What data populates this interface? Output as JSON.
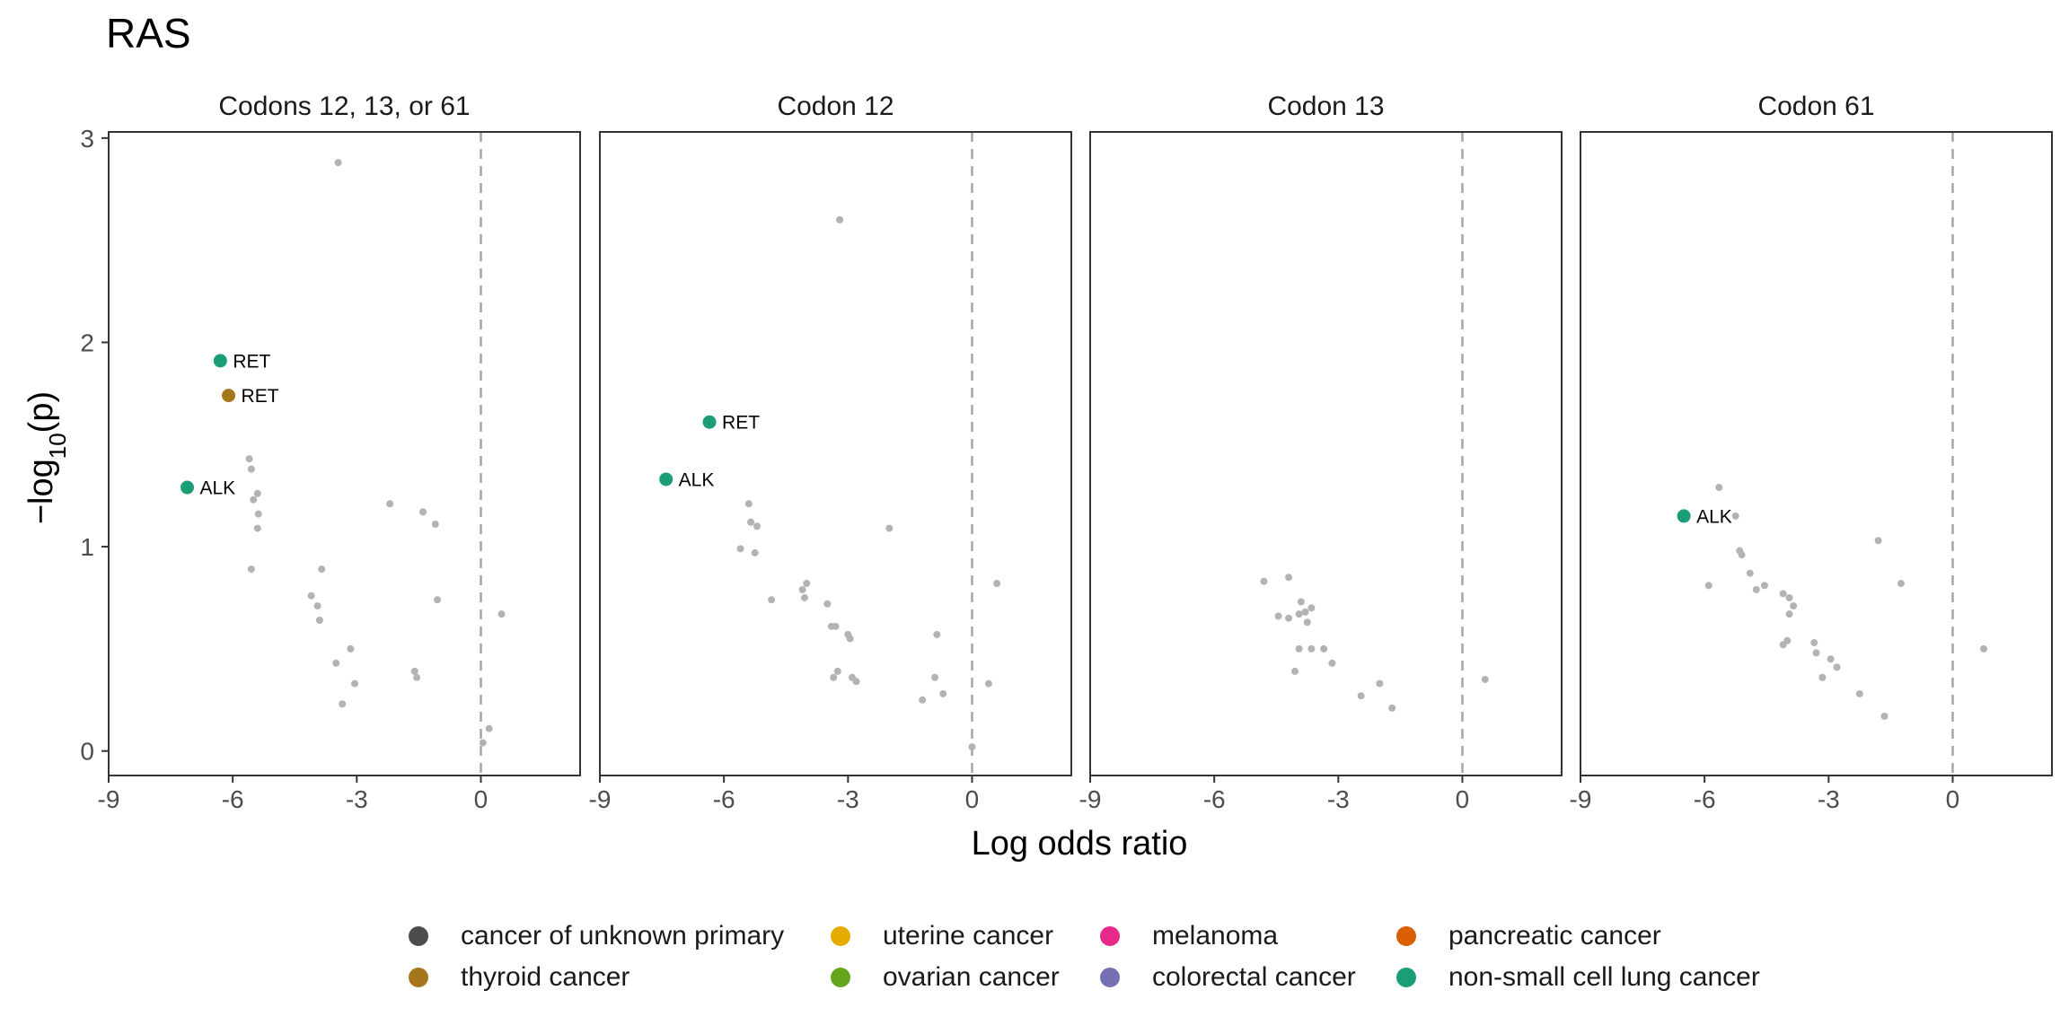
{
  "title": "RAS",
  "colors": {
    "background_point": "#b3b3b3",
    "panel_border": "#333333",
    "reference_line": "#a6a6a6"
  },
  "legend": {
    "items": [
      {
        "label": "cancer of unknown primary",
        "color": "#4d4d4d"
      },
      {
        "label": "uterine cancer",
        "color": "#e6ab02"
      },
      {
        "label": "melanoma",
        "color": "#e7298a"
      },
      {
        "label": "pancreatic cancer",
        "color": "#d95f02"
      },
      {
        "label": "thyroid cancer",
        "color": "#a6761d"
      },
      {
        "label": "ovarian cancer",
        "color": "#66a61e"
      },
      {
        "label": "colorectal cancer",
        "color": "#7570b3"
      },
      {
        "label": "non-small cell lung cancer",
        "color": "#1b9e77"
      }
    ]
  },
  "chart_data": {
    "type": "scatter",
    "xlabel": "Log odds ratio",
    "ylabel_parts": {
      "prefix": "−log",
      "subscript": "10",
      "suffix": "(p)"
    },
    "xlim": [
      -9,
      2.4
    ],
    "ylim": [
      -0.12,
      3.03
    ],
    "x_ticks": [
      -9,
      -6,
      -3,
      0
    ],
    "x_tick_labels": [
      "-9",
      "-6",
      "-3",
      "0"
    ],
    "y_ticks": [
      0,
      1,
      2,
      3
    ],
    "y_tick_labels": [
      "0",
      "1",
      "2",
      "3"
    ],
    "reference_line_x": 0,
    "grid": false,
    "legend_position": "bottom",
    "panels": [
      {
        "name": "Codons 12, 13, or 61",
        "background_points": [
          [
            -3.45,
            2.88
          ],
          [
            -5.6,
            1.43
          ],
          [
            -5.55,
            1.38
          ],
          [
            -5.4,
            1.26
          ],
          [
            -5.5,
            1.23
          ],
          [
            -5.38,
            1.16
          ],
          [
            -5.4,
            1.09
          ],
          [
            -2.2,
            1.21
          ],
          [
            -1.4,
            1.17
          ],
          [
            -1.1,
            1.11
          ],
          [
            -5.55,
            0.89
          ],
          [
            -3.85,
            0.89
          ],
          [
            -4.1,
            0.76
          ],
          [
            -3.95,
            0.71
          ],
          [
            -3.9,
            0.64
          ],
          [
            -1.05,
            0.74
          ],
          [
            0.5,
            0.67
          ],
          [
            -3.15,
            0.5
          ],
          [
            -3.5,
            0.43
          ],
          [
            -3.05,
            0.33
          ],
          [
            -3.35,
            0.23
          ],
          [
            -1.6,
            0.39
          ],
          [
            -1.55,
            0.36
          ],
          [
            0.2,
            0.11
          ],
          [
            0.05,
            0.04
          ]
        ],
        "highlights": [
          {
            "x": -6.3,
            "y": 1.91,
            "label": "RET",
            "color": "#1b9e77"
          },
          {
            "x": -6.1,
            "y": 1.74,
            "label": "RET",
            "color": "#a6761d"
          },
          {
            "x": -7.1,
            "y": 1.29,
            "label": "ALK",
            "color": "#1b9e77"
          }
        ]
      },
      {
        "name": "Codon 12",
        "background_points": [
          [
            -3.2,
            2.6
          ],
          [
            -5.4,
            1.21
          ],
          [
            -5.35,
            1.12
          ],
          [
            -5.2,
            1.1
          ],
          [
            -2.0,
            1.09
          ],
          [
            -5.6,
            0.99
          ],
          [
            -5.25,
            0.97
          ],
          [
            -4.0,
            0.82
          ],
          [
            -4.1,
            0.79
          ],
          [
            -4.05,
            0.75
          ],
          [
            -4.85,
            0.74
          ],
          [
            -3.5,
            0.72
          ],
          [
            -3.4,
            0.61
          ],
          [
            -3.3,
            0.61
          ],
          [
            -3.0,
            0.57
          ],
          [
            -2.95,
            0.55
          ],
          [
            -3.25,
            0.39
          ],
          [
            -3.35,
            0.36
          ],
          [
            -2.9,
            0.36
          ],
          [
            -2.8,
            0.34
          ],
          [
            -0.85,
            0.57
          ],
          [
            -0.9,
            0.36
          ],
          [
            -0.7,
            0.28
          ],
          [
            -1.2,
            0.25
          ],
          [
            0.6,
            0.82
          ],
          [
            0.4,
            0.33
          ],
          [
            0.0,
            0.02
          ]
        ],
        "highlights": [
          {
            "x": -6.35,
            "y": 1.61,
            "label": "RET",
            "color": "#1b9e77"
          },
          {
            "x": -7.4,
            "y": 1.33,
            "label": "ALK",
            "color": "#1b9e77"
          }
        ]
      },
      {
        "name": "Codon 13",
        "background_points": [
          [
            -4.8,
            0.83
          ],
          [
            -4.2,
            0.85
          ],
          [
            -3.9,
            0.73
          ],
          [
            -3.65,
            0.7
          ],
          [
            -3.8,
            0.68
          ],
          [
            -3.95,
            0.67
          ],
          [
            -4.45,
            0.66
          ],
          [
            -4.2,
            0.65
          ],
          [
            -3.75,
            0.63
          ],
          [
            -3.95,
            0.5
          ],
          [
            -3.65,
            0.5
          ],
          [
            -3.35,
            0.5
          ],
          [
            -3.15,
            0.43
          ],
          [
            -4.05,
            0.39
          ],
          [
            -2.0,
            0.33
          ],
          [
            -2.45,
            0.27
          ],
          [
            -1.7,
            0.21
          ],
          [
            0.55,
            0.35
          ]
        ],
        "highlights": []
      },
      {
        "name": "Codon 61",
        "background_points": [
          [
            -5.65,
            1.29
          ],
          [
            -5.25,
            1.15
          ],
          [
            -5.15,
            0.98
          ],
          [
            -5.1,
            0.96
          ],
          [
            -4.9,
            0.87
          ],
          [
            -4.55,
            0.81
          ],
          [
            -4.75,
            0.79
          ],
          [
            -4.1,
            0.77
          ],
          [
            -3.95,
            0.75
          ],
          [
            -3.85,
            0.71
          ],
          [
            -3.95,
            0.67
          ],
          [
            -5.9,
            0.81
          ],
          [
            -4.0,
            0.54
          ],
          [
            -4.1,
            0.52
          ],
          [
            -3.35,
            0.53
          ],
          [
            -3.3,
            0.48
          ],
          [
            -2.95,
            0.45
          ],
          [
            -2.8,
            0.41
          ],
          [
            -3.15,
            0.36
          ],
          [
            -2.25,
            0.28
          ],
          [
            -1.65,
            0.17
          ],
          [
            -1.8,
            1.03
          ],
          [
            -1.25,
            0.82
          ],
          [
            0.75,
            0.5
          ]
        ],
        "highlights": [
          {
            "x": -6.5,
            "y": 1.15,
            "label": "ALK",
            "color": "#1b9e77"
          }
        ]
      }
    ]
  }
}
